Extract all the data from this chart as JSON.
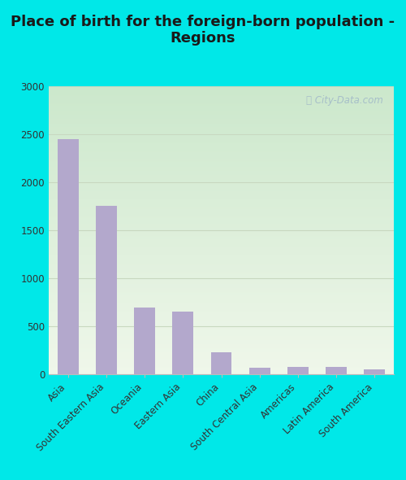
{
  "title": "Place of birth for the foreign-born population -\nRegions",
  "categories": [
    "Asia",
    "South Eastern Asia",
    "Oceania",
    "Eastern Asia",
    "China",
    "South Central Asia",
    "Americas",
    "Latin America",
    "South America"
  ],
  "values": [
    2449,
    1754,
    700,
    651,
    232,
    70,
    76,
    80,
    50
  ],
  "bar_color": "#b3a8cc",
  "bg_color_outer": "#00e8e8",
  "bg_grad_topleft": "#d8edd8",
  "bg_grad_bottomright": "#eef5e8",
  "bg_white_corner": "#f0f7f0",
  "ylim": [
    0,
    3000
  ],
  "yticks": [
    0,
    500,
    1000,
    1500,
    2000,
    2500,
    3000
  ],
  "grid_color": "#c8d8c0",
  "title_fontsize": 13,
  "tick_fontsize": 8.5,
  "watermark": "City-Data.com",
  "watermark_color": "#a0b8c8"
}
